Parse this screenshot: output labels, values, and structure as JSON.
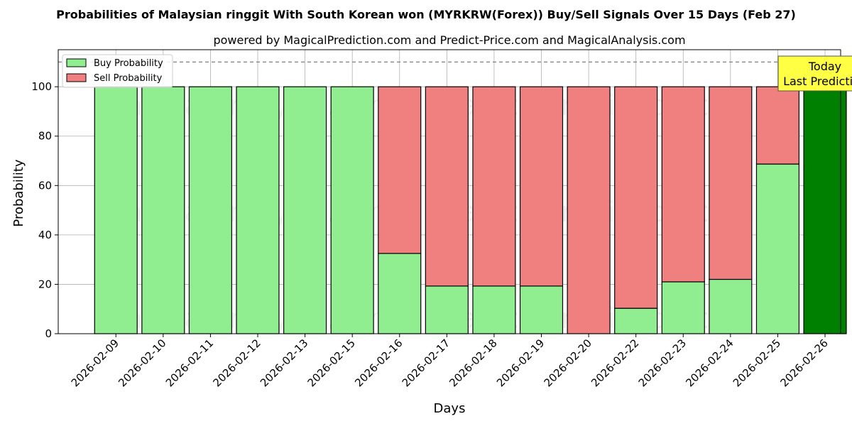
{
  "chart_data": {
    "type": "bar",
    "stacked": true,
    "title": "Probabilities of Malaysian ringgit With South Korean won (MYRKRW(Forex)) Buy/Sell Signals Over 15 Days (Feb 27)",
    "subtitle": "powered by MagicalPrediction.com and Predict-Price.com and MagicalAnalysis.com",
    "xlabel": "Days",
    "ylabel": "Probability",
    "ylim": [
      0,
      115
    ],
    "yticks": [
      0,
      20,
      40,
      60,
      80,
      100
    ],
    "threshold_line": 110,
    "grid": true,
    "legend_position": "top-left",
    "categories": [
      "2026-02-09",
      "2026-02-10",
      "2026-02-11",
      "2026-02-12",
      "2026-02-13",
      "2026-02-15",
      "2026-02-16",
      "2026-02-17",
      "2026-02-18",
      "2026-02-19",
      "2026-02-20",
      "2026-02-22",
      "2026-02-23",
      "2026-02-24",
      "2026-02-25",
      "2026-02-26"
    ],
    "series": [
      {
        "name": "Buy Probability",
        "color": "#90ee90",
        "values": [
          100,
          100,
          100,
          100,
          100,
          100,
          32.5,
          19.3,
          19.3,
          19.3,
          0,
          10.3,
          21,
          22,
          68.7,
          100
        ]
      },
      {
        "name": "Sell Probability",
        "color": "#f08080",
        "values": [
          0,
          0,
          0,
          0,
          0,
          0,
          67.5,
          80.7,
          80.7,
          80.7,
          100,
          89.7,
          79,
          78,
          31.3,
          0
        ]
      }
    ],
    "highlight": {
      "index": 15,
      "color": "#008000"
    },
    "annotation": {
      "line1": "Today",
      "line2": "Last Prediction",
      "background": "#ffff44"
    },
    "watermarks": [
      "MagicalAnalysis.com",
      "MagicalPrediction.com"
    ]
  }
}
